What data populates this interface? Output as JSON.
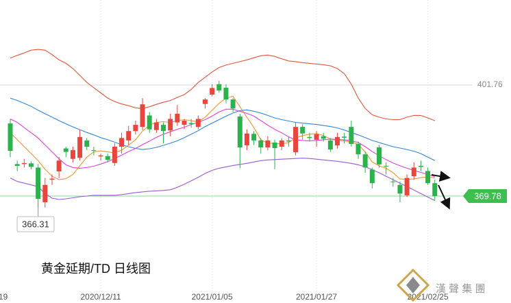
{
  "chart_data": {
    "type": "candlestick",
    "title": "黄金延期/TD  日线图",
    "categories": [
      "/19",
      null,
      null,
      null,
      null,
      null,
      null,
      null,
      null,
      null,
      null,
      null,
      null,
      "2020/12/11",
      null,
      null,
      null,
      null,
      null,
      null,
      null,
      null,
      null,
      null,
      null,
      null,
      null,
      null,
      null,
      "2021/01/05",
      null,
      null,
      null,
      null,
      null,
      null,
      null,
      null,
      null,
      null,
      null,
      null,
      null,
      null,
      "2021/01/27",
      null,
      null,
      null,
      null,
      null,
      null,
      null,
      null,
      null,
      null,
      null,
      null,
      null,
      null,
      null,
      "2021/02/25",
      null
    ],
    "open": [
      390.7,
      379,
      379,
      379.2,
      378,
      368,
      374.5,
      376.9,
      383.5,
      380.5,
      380.8,
      385.8,
      383,
      381.2,
      381.3,
      379.3,
      384,
      385.8,
      388.5,
      389.7,
      393,
      388.8,
      390.3,
      388.7,
      391,
      390.3,
      390.8,
      389.7,
      396.3,
      399,
      402,
      401,
      397.6,
      392.7,
      384.4,
      387.7,
      385.8,
      383.8,
      385.2,
      384,
      385.8,
      382.4,
      389.7,
      386.8,
      386,
      387,
      385.8,
      384.4,
      386.9,
      389.7,
      384.8,
      381.8,
      377.4,
      383.8,
      378.5,
      374,
      373,
      370,
      375.5,
      378.5,
      377,
      373.5
    ],
    "high": [
      392,
      380,
      380.5,
      379.8,
      379,
      375,
      376,
      381,
      384,
      384,
      389,
      386.5,
      384,
      382,
      382,
      385,
      388,
      390,
      391.5,
      398,
      394,
      392,
      391,
      393.5,
      396,
      392,
      392,
      393,
      398,
      402,
      403,
      402,
      398,
      393.5,
      389,
      388.5,
      386.5,
      387,
      386,
      386.5,
      387,
      391,
      390.5,
      388,
      388.5,
      388,
      386.5,
      388,
      388,
      391.5,
      385.5,
      382.5,
      378,
      384.5,
      379.5,
      375,
      374,
      376,
      379.5,
      380,
      378,
      374.5
    ],
    "low": [
      381,
      377,
      378,
      377.5,
      366.31,
      366.5,
      373,
      375,
      381,
      379.5,
      380,
      383,
      381.5,
      380,
      379.5,
      378.5,
      382,
      384.5,
      387.5,
      388.8,
      388,
      388,
      385,
      387,
      390,
      389,
      389.5,
      389,
      395,
      398.5,
      399.5,
      396.5,
      394,
      377.8,
      383,
      384.5,
      382,
      383,
      377.5,
      383,
      384,
      381.5,
      386,
      385.5,
      384,
      385.5,
      382.5,
      383.5,
      385,
      384,
      380.5,
      376.5,
      372,
      378,
      376,
      372.5,
      368,
      369.5,
      374.5,
      377,
      373,
      368.5
    ],
    "close": [
      382.8,
      378.5,
      379.3,
      378.2,
      369,
      373,
      374.8,
      380,
      382.5,
      383,
      386.8,
      384,
      382.8,
      381.5,
      380.2,
      384,
      386.5,
      388.5,
      390.3,
      396.2,
      389,
      391,
      388.5,
      392,
      393.5,
      391.5,
      390.5,
      392,
      397.6,
      400.9,
      400.2,
      397.6,
      395,
      383.8,
      387.8,
      385.8,
      383.8,
      385.8,
      383.6,
      385.8,
      385.5,
      389.7,
      387.8,
      386.5,
      387.6,
      386.3,
      383.2,
      386.8,
      386.6,
      384.8,
      381.8,
      378,
      373.5,
      378.9,
      378.4,
      373.8,
      370.5,
      375,
      378,
      378.2,
      373.5,
      369.78
    ],
    "up_color": "#e8463c",
    "down_color": "#2bb24c",
    "series": [
      {
        "color": "#e0553f",
        "values": [
          409.5,
          410.3,
          411,
          411.8,
          412,
          411.8,
          410.5,
          409,
          408,
          406.5,
          404.5,
          402.5,
          401,
          399.5,
          398,
          397,
          396.3,
          395.8,
          395.2,
          395,
          395.5,
          396.2,
          396.8,
          397.3,
          398.2,
          399,
          400.5,
          402.5,
          404,
          405.5,
          406.8,
          407.5,
          408,
          408.5,
          409,
          409.6,
          410.2,
          410.4,
          410,
          409.3,
          408.7,
          408.5,
          408.2,
          408,
          407.8,
          407.6,
          407.3,
          406.5,
          405,
          402,
          398,
          395,
          393.2,
          392.5,
          392,
          391.8,
          391.8,
          392.5,
          393,
          393,
          392.3,
          391.5
        ]
      },
      {
        "color": "#2f86d8",
        "values": [
          398,
          397.3,
          396.5,
          395.6,
          394.5,
          393.5,
          392.5,
          391.5,
          390.6,
          389.7,
          388.9,
          388.1,
          387.4,
          386.6,
          386,
          385.3,
          384.6,
          384,
          383.5,
          383.2,
          383.4,
          383.8,
          384.4,
          385,
          385.7,
          386.6,
          387.6,
          388.6,
          389.8,
          390.8,
          391.8,
          392.8,
          393.7,
          394.4,
          394.6,
          394.2,
          393.7,
          393,
          392.3,
          391.8,
          391.4,
          391,
          390.8,
          390.6,
          390.4,
          390.1,
          389.8,
          389.4,
          388.8,
          388.1,
          387.4,
          386.6,
          385.8,
          385.2,
          384.6,
          384,
          383.6,
          383.2,
          382.7,
          382,
          381,
          380
        ]
      },
      {
        "color": "#9b59d6",
        "values": [
          375,
          374,
          373.5,
          373,
          372.5,
          370.5,
          369.2,
          368.8,
          369,
          369.3,
          369.6,
          369.8,
          370,
          370,
          370,
          370,
          370.2,
          370.5,
          370.8,
          371,
          371.2,
          371.3,
          371.4,
          371.6,
          372.3,
          373.2,
          374.2,
          375.2,
          376.3,
          377.2,
          377.8,
          378.2,
          378.6,
          378.9,
          379.2,
          379.6,
          380,
          380.2,
          380.3,
          380.4,
          380.5,
          380.6,
          380.7,
          380.6,
          380.4,
          380.2,
          380,
          379.8,
          379.5,
          379.2,
          378.8,
          378.2,
          377.4,
          376.5,
          375.5,
          374.5,
          373.5,
          372.5,
          371.5,
          370.5,
          369.5,
          368.5
        ]
      },
      {
        "color": "#f0962e",
        "values": [
          388,
          386,
          384,
          382,
          380,
          377.5,
          375.5,
          374.5,
          374.8,
          376,
          378.5,
          381,
          382.5,
          382.8,
          382.5,
          382.2,
          383,
          384.5,
          386,
          388.5,
          390.2,
          391,
          391.2,
          391,
          391.5,
          391.8,
          391.5,
          391.2,
          392.5,
          394.5,
          396.5,
          398,
          398.5,
          395.5,
          392.5,
          389.5,
          386,
          385,
          385,
          384.8,
          385.2,
          386.5,
          387.2,
          387.6,
          387.8,
          387.2,
          386.2,
          385.8,
          385.7,
          385.3,
          384.7,
          382.5,
          379.6,
          378.5,
          377.8,
          376.5,
          374.7,
          374.6,
          374.7,
          375.1,
          375.3,
          375
        ]
      },
      {
        "color": "#e040d8",
        "values": [
          392,
          391,
          389.5,
          388,
          386.5,
          384.5,
          382.5,
          380.5,
          378.8,
          378,
          377.8,
          378,
          378.4,
          379,
          379.7,
          380.6,
          381.6,
          382.6,
          383.5,
          384.6,
          385.6,
          386.7,
          387.6,
          388.3,
          389,
          389.6,
          390.4,
          391,
          391.8,
          392.8,
          394,
          394.8,
          394.8,
          394.2,
          393.6,
          392.8,
          391.5,
          390.2,
          389,
          388,
          386.8,
          386,
          385.8,
          385.7,
          385.8,
          386,
          386.2,
          386.1,
          386,
          385.7,
          385.2,
          384,
          382.6,
          381.4,
          380.3,
          379.3,
          378.5,
          377.8,
          377.2,
          376.6,
          376,
          375.4
        ]
      }
    ],
    "ylim": [
      339,
      426.24
    ],
    "yticks": [
      401.76
    ],
    "last_price": 369.78,
    "last_price_color": "#3cbf4e",
    "low_annotation": 366.31,
    "watermark": "漢 聲 集 團"
  }
}
